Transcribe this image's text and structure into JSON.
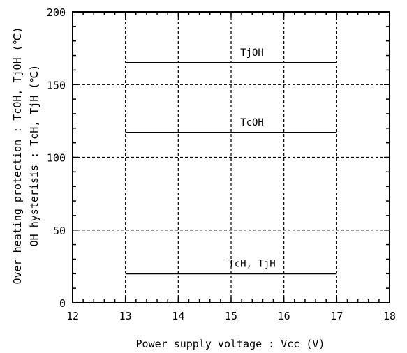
{
  "chart_data": {
    "type": "line",
    "xlabel": "Power supply voltage : Vcc (V)",
    "ylabel": [
      "Over heating protection : TcOH, TjOH (℃)",
      "OH hysterisis : TcH, TjH (℃)"
    ],
    "xlim": [
      12,
      18
    ],
    "ylim": [
      0,
      200
    ],
    "xticks": [
      "12",
      "13",
      "14",
      "15",
      "16",
      "17",
      "18"
    ],
    "yticks": [
      "0",
      "50",
      "100",
      "150",
      "200"
    ],
    "x_minor_step": 0.2,
    "y_minor_step": 10,
    "grid": "dashed-major",
    "series": [
      {
        "name": "TjOH",
        "x": [
          13,
          17
        ],
        "y": [
          165,
          165
        ]
      },
      {
        "name": "TcOH",
        "x": [
          13,
          17
        ],
        "y": [
          117,
          117
        ]
      },
      {
        "name": "TcH, TjH",
        "x": [
          13,
          17
        ],
        "y": [
          20,
          20
        ]
      }
    ]
  }
}
